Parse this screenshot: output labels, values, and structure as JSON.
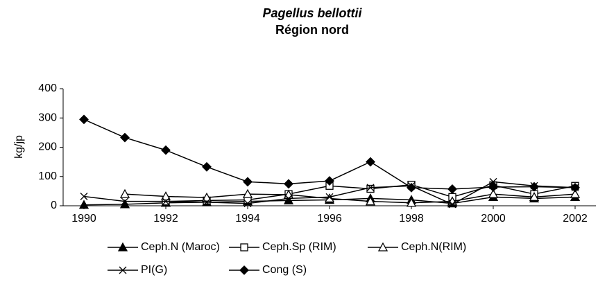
{
  "chart_data": {
    "type": "line",
    "title": "Pagellus bellottii",
    "subtitle": "Région nord",
    "y_label": "kg/jp",
    "x": [
      1990,
      1991,
      1992,
      1993,
      1994,
      1995,
      1996,
      1997,
      1998,
      1999,
      2000,
      2001,
      2002
    ],
    "xlim": [
      1990,
      2002
    ],
    "xticks": [
      1990,
      1992,
      1994,
      1996,
      1998,
      2000,
      2002
    ],
    "ylim": [
      0,
      400
    ],
    "yticks": [
      0,
      100,
      200,
      300,
      400
    ],
    "series": [
      {
        "name": "Ceph.N (Maroc)",
        "color": "#000000",
        "marker": "triangle-filled",
        "values": [
          3,
          5,
          10,
          12,
          15,
          18,
          20,
          25,
          20,
          8,
          30,
          25,
          30
        ]
      },
      {
        "name": "Ceph.Sp (RIM)",
        "color": "#000000",
        "marker": "square-open",
        "values": [
          null,
          null,
          15,
          18,
          20,
          40,
          68,
          58,
          72,
          30,
          70,
          40,
          68
        ]
      },
      {
        "name": "Ceph.N(RIM)",
        "color": "#000000",
        "marker": "triangle-open",
        "values": [
          null,
          40,
          32,
          28,
          40,
          38,
          25,
          15,
          10,
          15,
          40,
          30,
          40
        ]
      },
      {
        "name": "PI(G)",
        "color": "#000000",
        "marker": "x",
        "values": [
          32,
          15,
          15,
          12,
          8,
          25,
          30,
          62,
          68,
          5,
          82,
          68,
          62
        ]
      },
      {
        "name": "Cong (S)",
        "color": "#000000",
        "marker": "diamond-filled",
        "values": [
          295,
          233,
          190,
          133,
          82,
          75,
          85,
          150,
          62,
          57,
          64,
          65,
          62
        ]
      }
    ]
  }
}
